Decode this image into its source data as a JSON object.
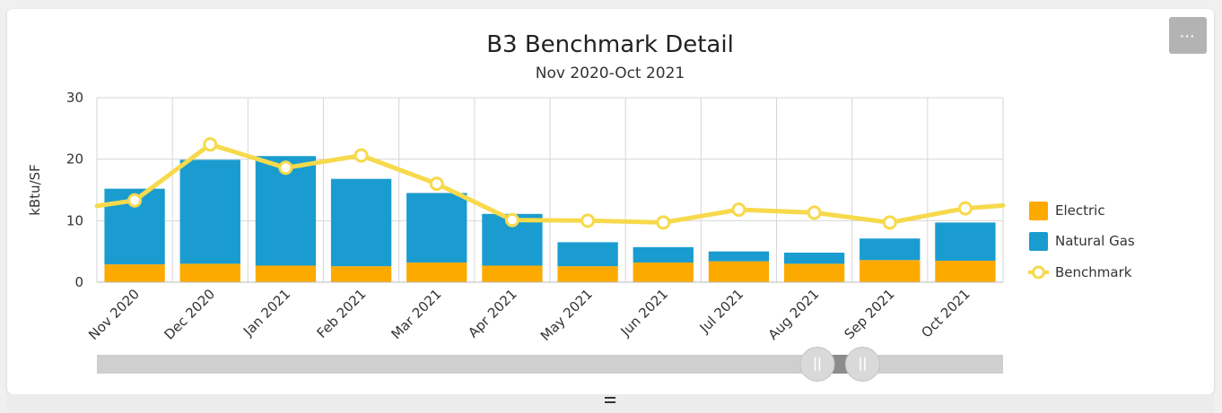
{
  "menu": {
    "label": "···"
  },
  "chart_data": {
    "type": "bar",
    "title": "B3 Benchmark Detail",
    "subtitle": "Nov 2020-Oct 2021",
    "ylabel": "kBtu/SF",
    "xlabel": "",
    "ylim": [
      0,
      30
    ],
    "yticks": [
      0,
      10,
      20,
      30
    ],
    "grid": true,
    "stacked": true,
    "legend_position": "right",
    "categories": [
      "Nov 2020",
      "Dec 2020",
      "Jan 2021",
      "Feb 2021",
      "Mar 2021",
      "Apr 2021",
      "May 2021",
      "Jun 2021",
      "Jul 2021",
      "Aug 2021",
      "Sep 2021",
      "Oct 2021"
    ],
    "series": [
      {
        "name": "Electric",
        "kind": "bar",
        "color": "#fdaa00",
        "values": [
          2.9,
          3.0,
          2.7,
          2.6,
          3.2,
          2.7,
          2.6,
          3.2,
          3.4,
          3.0,
          3.6,
          3.5
        ]
      },
      {
        "name": "Natural Gas",
        "kind": "bar",
        "color": "#1a9cd0",
        "values": [
          12.3,
          16.9,
          17.8,
          14.2,
          11.3,
          8.4,
          3.9,
          2.5,
          1.6,
          1.8,
          3.5,
          6.2
        ]
      },
      {
        "name": "Benchmark",
        "kind": "line",
        "color": "#f7d94c",
        "values": [
          13.3,
          22.4,
          18.6,
          20.6,
          16.0,
          10.1,
          10.0,
          9.7,
          11.8,
          11.3,
          9.7,
          12.0
        ]
      }
    ],
    "navigator": {
      "range_start_fraction": 0.795,
      "range_end_fraction": 0.845
    }
  }
}
